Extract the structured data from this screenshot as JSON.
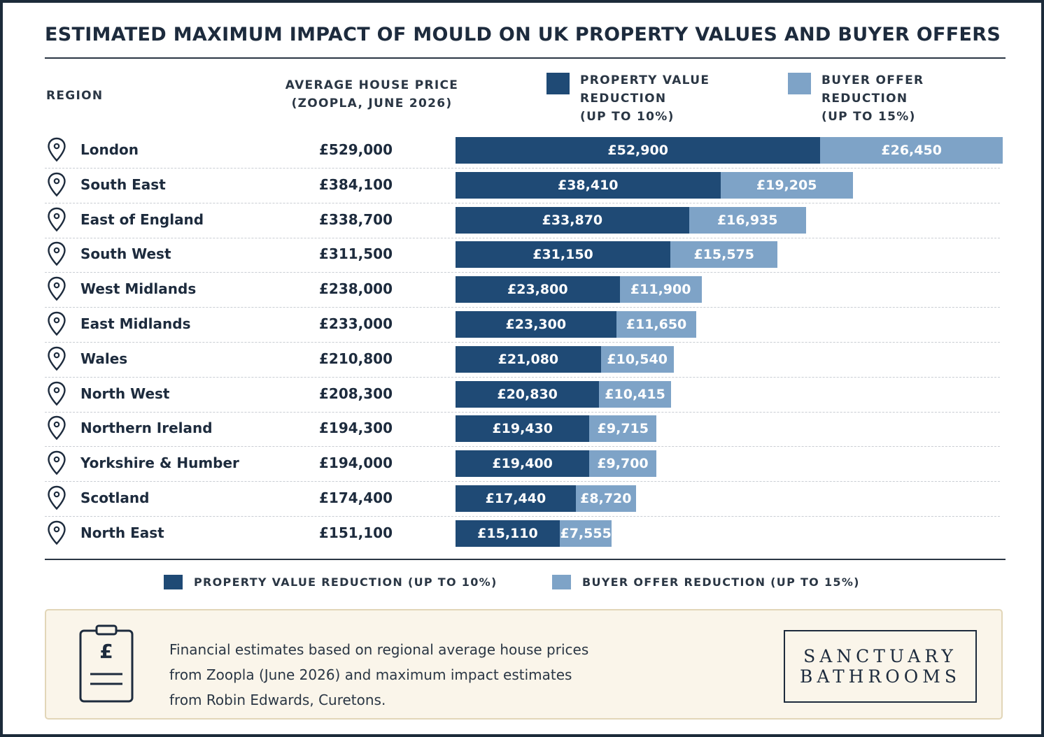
{
  "title": "ESTIMATED MAXIMUM IMPACT OF MOULD ON UK PROPERTY VALUES AND BUYER OFFERS",
  "columns": {
    "region": "REGION",
    "price": "AVERAGE HOUSE PRICE\n(ZOOPLA, JUNE 2026)",
    "pv": "PROPERTY VALUE\nREDUCTION\n(UP TO 10%)",
    "bo": "BUYER OFFER\nREDUCTION\n(UP TO 15%)"
  },
  "legend": {
    "pv": "PROPERTY VALUE REDUCTION (UP TO 10%)",
    "bo": "BUYER OFFER REDUCTION (UP TO 15%)"
  },
  "colors": {
    "pv": "#1f4a75",
    "bo": "#7ea3c7"
  },
  "note": {
    "icon": "clipboard-pound-icon",
    "line1": "Financial estimates based on regional average house prices",
    "line2": "from Zoopla (June 2026) and maximum impact estimates",
    "line3": "from Robin Edwards, Curetons."
  },
  "brand": {
    "line1": "SANCTUARY",
    "line2": "BATHROOMS"
  },
  "chart_data": {
    "type": "bar",
    "orientation": "horizontal",
    "stacked": true,
    "categories": [
      "London",
      "South East",
      "East of England",
      "South West",
      "West Midlands",
      "East Midlands",
      "Wales",
      "North West",
      "Northern Ireland",
      "Yorkshire & Humber",
      "Scotland",
      "North East"
    ],
    "prices": [
      "£529,000",
      "£384,100",
      "£338,700",
      "£311,500",
      "£238,000",
      "£233,000",
      "£210,800",
      "£208,300",
      "£194,300",
      "£194,000",
      "£174,400",
      "£151,100"
    ],
    "series": [
      {
        "name": "PROPERTY VALUE REDUCTION (UP TO 10%)",
        "values": [
          52900,
          38410,
          33870,
          31150,
          23800,
          23300,
          21080,
          20830,
          19430,
          19400,
          17440,
          15110
        ],
        "labels": [
          "£52,900",
          "£38,410",
          "£33,870",
          "£31,150",
          "£23,800",
          "£23,300",
          "£21,080",
          "£20,830",
          "£19,430",
          "£19,400",
          "£17,440",
          "£15,110"
        ]
      },
      {
        "name": "BUYER OFFER REDUCTION (UP TO 15%)",
        "values": [
          26450,
          19205,
          16935,
          15575,
          11900,
          11650,
          10540,
          10415,
          9715,
          9700,
          8720,
          7555
        ],
        "labels": [
          "£26,450",
          "£19,205",
          "£16,935",
          "£15,575",
          "£11,900",
          "£11,650",
          "£10,540",
          "£10,415",
          "£9,715",
          "£9,700",
          "£8,720",
          "£7,555"
        ]
      }
    ],
    "legend": "top and bottom",
    "grid": false
  }
}
